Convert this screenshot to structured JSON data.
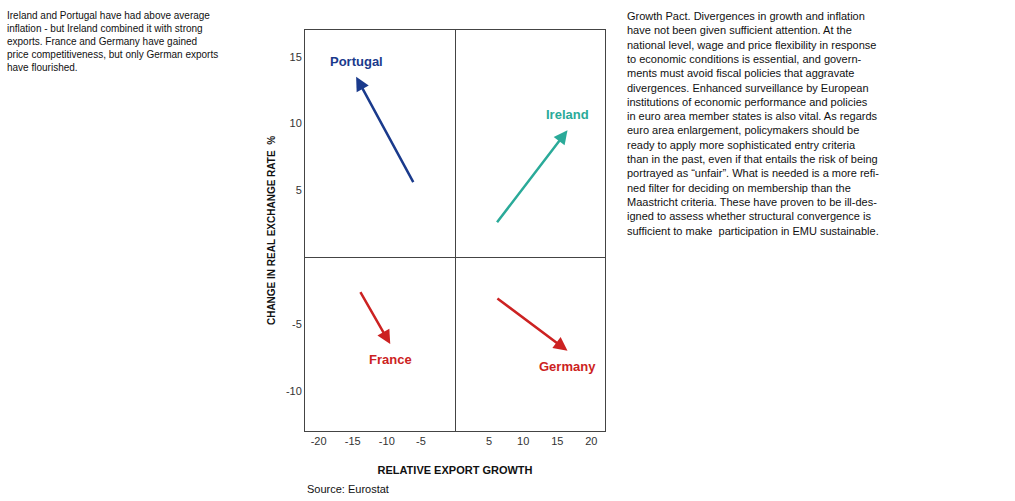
{
  "chart_data": {
    "type": "arrows",
    "xlabel": "RELATIVE EXPORT GROWTH",
    "ylabel": "CHANGE IN REAL EXCHANGE RATE  %",
    "xlim": [
      -22,
      22
    ],
    "ylim": [
      -13,
      17
    ],
    "xticks": [
      -20,
      -15,
      -10,
      -5,
      5,
      10,
      15,
      20
    ],
    "yticks": [
      -10,
      -5,
      5,
      10,
      15
    ],
    "grid": false,
    "series": [
      {
        "name": "Portugal",
        "color": "#1a3a8c",
        "x": [
          -6.0,
          -14.5
        ],
        "y": [
          5.5,
          13.5
        ]
      },
      {
        "name": "Ireland",
        "color": "#2aaa99",
        "x": [
          6.0,
          16.5
        ],
        "y": [
          2.5,
          9.5
        ]
      },
      {
        "name": "France",
        "color": "#cc2222",
        "x": [
          -14.0,
          -9.5
        ],
        "y": [
          -2.5,
          -6.5
        ]
      },
      {
        "name": "Germany",
        "color": "#cc2222",
        "x": [
          6.0,
          16.5
        ],
        "y": [
          -3.0,
          -7.0
        ]
      }
    ],
    "annotations": [
      {
        "text": [
          "Ireland and Portugal have had above average",
          "inflation - but Ireland combined it with strong",
          "exports. France and Germany have gained",
          "price competitiveness, but only German exports",
          "have flourished."
        ]
      },
      {
        "text": [
          "Growth Pact. Divergences in growth and inflation",
          "have not been given sufficient attention. At the",
          "national level, wage and price flexibility in response",
          "to economic conditions is essential, and govern-",
          "ments must avoid fiscal policies that aggravate",
          "divergences. Enhanced surveillance by European",
          "institutions of economic performance and policies",
          "in euro area member states is also vital. As regards",
          "euro area enlargement, policymakers should be",
          "ready to apply more sophisticated entry criteria",
          "than in the past, even if that entails the risk of being",
          "portrayed as “unfair”. What is needed is a more refi-",
          "ned filter for deciding on membership than the",
          "Maastricht criteria. These have proven to be ill-des-",
          "igned to assess whether structural convergence is",
          "sufficient to make  participation in EMU sustainable."
        ]
      },
      {
        "text": [
          "Source: Eurostat"
        ]
      }
    ]
  }
}
